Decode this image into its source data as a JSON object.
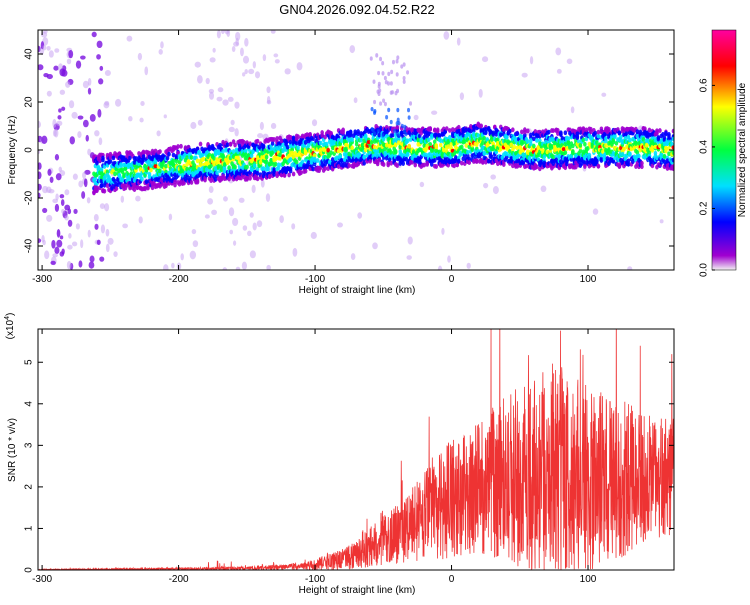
{
  "title": "GN04.2026.092.04.52.R22",
  "chart_data": [
    {
      "type": "heatmap",
      "name": "spectrogram",
      "xlabel": "Height of straight line (km)",
      "ylabel": "Frequency (Hz)",
      "xlim": [
        -303,
        163
      ],
      "ylim": [
        -50,
        50
      ],
      "xticks": [
        -300,
        -200,
        -100,
        0,
        100
      ],
      "xtick_labels": [
        "-300",
        "-200",
        "-100",
        "0",
        "100"
      ],
      "yticks": [
        -40,
        -20,
        0,
        20,
        40
      ],
      "ytick_labels": [
        "-40",
        "-20",
        "0",
        "20",
        "40"
      ],
      "colorbar": {
        "label": "Normalized spectral amplitude",
        "range": [
          0.0,
          0.78
        ],
        "ticks": [
          0.0,
          0.2,
          0.4,
          0.6
        ],
        "tick_labels": [
          "0.0",
          "0.2",
          "0.4",
          "0.6"
        ],
        "colormap": [
          "#f0f0f0",
          "#a000d0",
          "#0000ff",
          "#00e0ff",
          "#00ff40",
          "#ffff00",
          "#ff0000",
          "#ff00a0"
        ]
      },
      "ridge": {
        "x": [
          -260,
          -220,
          -180,
          -140,
          -100,
          -60,
          -20,
          0,
          20,
          60,
          100,
          140,
          163
        ],
        "y": [
          -10,
          -8,
          -5,
          -4,
          -1,
          2,
          1,
          1,
          3,
          0,
          1,
          1,
          0
        ]
      }
    },
    {
      "type": "line",
      "name": "snr",
      "xlabel": "Height of straight line (km)",
      "ylabel": "SNR (10 * v/v)",
      "y_multiplier": "(x10",
      "y_multiplier_exp": "4",
      "y_multiplier_close": ")",
      "xlim": [
        -303,
        163
      ],
      "ylim": [
        0,
        5.8
      ],
      "xticks": [
        -300,
        -200,
        -100,
        0,
        100
      ],
      "xtick_labels": [
        "-300",
        "-200",
        "-100",
        "0",
        "100"
      ],
      "yticks": [
        0,
        1,
        2,
        3,
        4,
        5
      ],
      "ytick_labels": [
        "0",
        "1",
        "2",
        "3",
        "4",
        "5"
      ],
      "color": "#ee3333",
      "envelope": {
        "x": [
          -303,
          -250,
          -200,
          -150,
          -110,
          -80,
          -50,
          -30,
          -10,
          0,
          20,
          40,
          60,
          80,
          100,
          120,
          140,
          163
        ],
        "mean": [
          0.01,
          0.02,
          0.03,
          0.04,
          0.08,
          0.25,
          0.7,
          1.1,
          1.5,
          1.7,
          2.0,
          2.2,
          2.3,
          2.3,
          2.2,
          2.2,
          2.2,
          2.2
        ],
        "amplitude": [
          0.01,
          0.02,
          0.03,
          0.05,
          0.08,
          0.25,
          0.6,
          0.9,
          1.3,
          1.4,
          1.6,
          2.0,
          2.4,
          2.6,
          2.3,
          2.0,
          1.6,
          1.4
        ]
      }
    }
  ]
}
